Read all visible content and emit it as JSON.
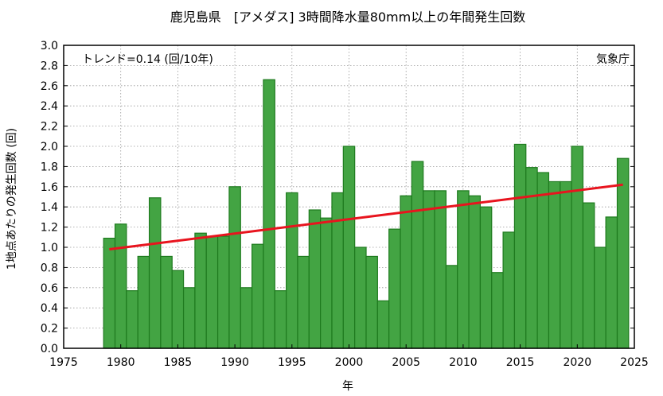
{
  "chart_data": {
    "type": "bar",
    "title": "鹿児島県　[アメダス] 3時間降水量80mm以上の年間発生回数",
    "xlabel": "年",
    "ylabel": "1地点あたりの発生回数 (回)",
    "xlim": [
      1975,
      2025
    ],
    "ylim": [
      0.0,
      3.0
    ],
    "x_ticks": [
      1975,
      1980,
      1985,
      1990,
      1995,
      2000,
      2005,
      2010,
      2015,
      2020,
      2025
    ],
    "y_ticks": [
      "0.0",
      "0.2",
      "0.4",
      "0.6",
      "0.8",
      "1.0",
      "1.2",
      "1.4",
      "1.6",
      "1.8",
      "2.0",
      "2.2",
      "2.4",
      "2.6",
      "2.8",
      "3.0"
    ],
    "grid": true,
    "bar_color": "#43a443",
    "bar_edge_color": "#1e7a1e",
    "trend_color": "#e8141e",
    "x": [
      1979,
      1980,
      1981,
      1982,
      1983,
      1984,
      1985,
      1986,
      1987,
      1988,
      1989,
      1990,
      1991,
      1992,
      1993,
      1994,
      1995,
      1996,
      1997,
      1998,
      1999,
      2000,
      2001,
      2002,
      2003,
      2004,
      2005,
      2006,
      2007,
      2008,
      2009,
      2010,
      2011,
      2012,
      2013,
      2014,
      2015,
      2016,
      2017,
      2018,
      2019,
      2020,
      2021,
      2022,
      2023,
      2024
    ],
    "values": [
      1.09,
      1.23,
      0.57,
      0.91,
      1.49,
      0.91,
      0.77,
      0.6,
      1.14,
      1.11,
      1.11,
      1.6,
      0.6,
      1.03,
      2.66,
      0.57,
      1.54,
      0.91,
      1.37,
      1.29,
      1.54,
      2.0,
      1.0,
      0.91,
      0.47,
      1.18,
      1.51,
      1.85,
      1.56,
      1.56,
      0.82,
      1.56,
      1.51,
      1.4,
      0.75,
      1.15,
      2.02,
      1.79,
      1.74,
      1.65,
      1.65,
      2.0,
      1.44,
      1.0,
      1.3,
      1.88
    ],
    "trend": {
      "x": [
        1979,
        2024
      ],
      "y": [
        0.98,
        1.62
      ]
    },
    "trend_label": "トレンド=0.14 (回/10年)",
    "source_label": "気象庁"
  }
}
